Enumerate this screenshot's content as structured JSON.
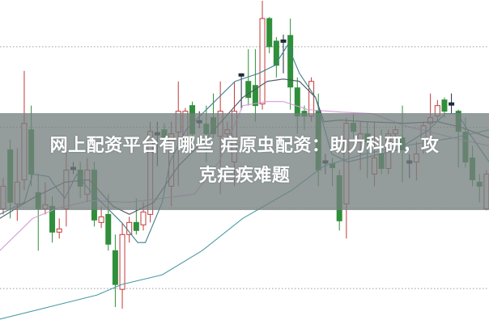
{
  "headline": {
    "line1": "网上配资平台有哪些 疟原虫配资：助力科研，攻",
    "line2": "克疟疾难题"
  },
  "colors": {
    "up": "#c23a3a",
    "down": "#2f8f3a",
    "doji": "#1f2a3a",
    "grid": "#9a9a9a",
    "overlay": "#767f7f",
    "ma_short": "#3f7f8c",
    "ma_mid": "#4a5560",
    "ma_pink": "#d79ad8",
    "ma_long": "#4a9aa6"
  },
  "chart_data": {
    "type": "candlestick",
    "title": "",
    "xlabel": "",
    "ylabel": "",
    "grid": true,
    "grid_style": "dotted horizontal",
    "ylim": [
      0,
      40.1
    ],
    "candles": [
      [
        14.2,
        17.0,
        18.0,
        13.5
      ],
      [
        21.5,
        15.0,
        22.8,
        13.0
      ],
      [
        14.8,
        17.5,
        21.7,
        12.7
      ],
      [
        17.8,
        24.8,
        31.3,
        16.5
      ],
      [
        24.0,
        18.5,
        27.0,
        17.0
      ],
      [
        16.2,
        14.2,
        18.5,
        9.0
      ],
      [
        14.2,
        14.7,
        17.5,
        13.5
      ],
      [
        14.5,
        11.3,
        15.7,
        10.0
      ],
      [
        11.3,
        11.7,
        13.0,
        10.5
      ],
      [
        14.2,
        19.0,
        22.0,
        12.0
      ],
      [
        19.0,
        19.2,
        20.0,
        18.5
      ],
      [
        19.0,
        17.0,
        20.0,
        15.5
      ],
      [
        16.0,
        19.0,
        20.5,
        15.0
      ],
      [
        19.0,
        12.8,
        20.0,
        12.0
      ],
      [
        12.5,
        13.2,
        14.5,
        11.8
      ],
      [
        13.5,
        9.8,
        16.0,
        9.0
      ],
      [
        9.0,
        4.8,
        11.0,
        2.0
      ],
      [
        4.2,
        11.0,
        12.5,
        1.8
      ],
      [
        11.0,
        12.5,
        13.2,
        10.0
      ],
      [
        12.5,
        11.5,
        15.5,
        11.0
      ],
      [
        12.2,
        13.8,
        15.0,
        11.5
      ],
      [
        13.5,
        23.8,
        25.0,
        12.5
      ],
      [
        23.5,
        23.5,
        25.0,
        19.5
      ],
      [
        24.0,
        23.0,
        24.8,
        22.5
      ],
      [
        17.0,
        23.5,
        25.0,
        14.5
      ],
      [
        23.7,
        26.3,
        30.0,
        17.0
      ],
      [
        22.5,
        26.3,
        26.7,
        22.5
      ],
      [
        27.0,
        23.5,
        27.5,
        23.0
      ],
      [
        25.0,
        25.0,
        26.3,
        24.2
      ],
      [
        24.7,
        23.5,
        27.0,
        20.0
      ],
      [
        25.5,
        23.5,
        28.5,
        23.0
      ],
      [
        23.2,
        26.3,
        30.0,
        16.0
      ],
      [
        23.5,
        24.0,
        25.0,
        23.0
      ],
      [
        20.0,
        26.3,
        30.0,
        17.0
      ],
      [
        30.8,
        30.8,
        31.0,
        26.5
      ],
      [
        30.0,
        28.0,
        34.0,
        27.0
      ],
      [
        29.5,
        27.0,
        34.0,
        25.0
      ],
      [
        27.2,
        37.8,
        40.0,
        26.5
      ],
      [
        37.8,
        34.3,
        38.0,
        33.5
      ],
      [
        35.0,
        32.0,
        35.5,
        30.5
      ],
      [
        35.0,
        34.8,
        35.8,
        31.0
      ],
      [
        35.7,
        29.3,
        37.8,
        26.5
      ],
      [
        29.2,
        25.7,
        30.5,
        23.5
      ],
      [
        26.3,
        25.7,
        27.0,
        24.0
      ],
      [
        25.7,
        30.0,
        30.5,
        25.0
      ],
      [
        26.3,
        19.0,
        28.5,
        17.0
      ],
      [
        20.0,
        20.0,
        21.0,
        18.5
      ],
      [
        19.8,
        19.3,
        20.5,
        17.0
      ],
      [
        18.3,
        12.7,
        19.0,
        11.5
      ],
      [
        14.8,
        24.8,
        25.5,
        10.5
      ],
      [
        24.8,
        23.8,
        26.0,
        23.0
      ],
      [
        22.5,
        23.5,
        25.0,
        19.0
      ],
      [
        23.5,
        22.5,
        25.0,
        18.0
      ],
      [
        18.5,
        20.5,
        25.0,
        17.0
      ],
      [
        21.0,
        19.2,
        24.0,
        18.5
      ],
      [
        19.2,
        23.5,
        24.0,
        18.5
      ],
      [
        23.5,
        24.0,
        24.5,
        23.0
      ],
      [
        23.0,
        21.5,
        27.0,
        17.5
      ],
      [
        20.0,
        20.0,
        21.0,
        18.0
      ],
      [
        20.0,
        21.0,
        22.5,
        17.7
      ],
      [
        23.0,
        24.5,
        25.0,
        21.0
      ],
      [
        24.8,
        25.5,
        28.5,
        22.5
      ],
      [
        25.7,
        27.0,
        27.7,
        25.0
      ],
      [
        27.7,
        26.3,
        28.0,
        25.5
      ],
      [
        27.2,
        27.2,
        28.5,
        26.0
      ],
      [
        26.3,
        23.8,
        26.5,
        19.3
      ],
      [
        23.7,
        20.0,
        25.5,
        19.3
      ],
      [
        20.5,
        17.8,
        22.0,
        17.0
      ],
      [
        17.5,
        17.0,
        18.5,
        15.0
      ],
      [
        14.2,
        18.5,
        19.0,
        14.0
      ]
    ],
    "candle_fields": [
      "open",
      "close",
      "high",
      "low"
    ],
    "moving_averages": [
      {
        "color_key": "ma_long",
        "points": [
          [
            -0.5,
            0.5
          ],
          [
            6.5,
            2
          ],
          [
            13.4,
            3.5
          ],
          [
            16.9,
            4.8
          ],
          [
            22.7,
            6
          ],
          [
            28.4,
            9
          ],
          [
            34.2,
            13
          ],
          [
            41.2,
            16.5
          ],
          [
            45.8,
            19.5
          ],
          [
            51.6,
            21
          ],
          [
            57.3,
            22
          ],
          [
            64.3,
            23
          ],
          [
            69.4,
            24
          ]
        ]
      },
      {
        "color_key": "ma_pink",
        "points": [
          [
            -0.5,
            9
          ],
          [
            4.2,
            13
          ],
          [
            7.6,
            14.2
          ],
          [
            12.3,
            15.2
          ],
          [
            18,
            15
          ],
          [
            27.3,
            16
          ],
          [
            30.8,
            20
          ],
          [
            34.2,
            27
          ],
          [
            37.7,
            27.5
          ],
          [
            40,
            27.5
          ],
          [
            43.5,
            26.5
          ],
          [
            48.1,
            26.2
          ],
          [
            52.7,
            26
          ],
          [
            57.3,
            24.5
          ],
          [
            64.3,
            23
          ],
          [
            69.4,
            22
          ]
        ]
      },
      {
        "color_key": "ma_mid",
        "points": [
          [
            -0.5,
            13
          ],
          [
            4.2,
            15.5
          ],
          [
            8.8,
            17.5
          ],
          [
            12.3,
            17.8
          ],
          [
            15.7,
            14.5
          ],
          [
            18,
            13.5
          ],
          [
            21.5,
            15
          ],
          [
            25,
            19.5
          ],
          [
            29.6,
            23.5
          ],
          [
            34.2,
            28
          ],
          [
            37.7,
            30
          ],
          [
            40,
            30.3
          ],
          [
            42.3,
            30
          ],
          [
            44.6,
            28
          ],
          [
            45.8,
            25
          ],
          [
            48.1,
            25.2
          ],
          [
            51.6,
            25
          ],
          [
            57.3,
            24.8
          ],
          [
            62,
            25
          ],
          [
            65.4,
            24.3
          ],
          [
            69.4,
            23
          ]
        ]
      },
      {
        "color_key": "ma_short",
        "points": [
          [
            -0.5,
            13.5
          ],
          [
            3,
            15
          ],
          [
            4.2,
            18.5
          ],
          [
            6.5,
            18.2
          ],
          [
            7.6,
            16.8
          ],
          [
            8.8,
            15.5
          ],
          [
            10.5,
            18.5
          ],
          [
            12.3,
            16.5
          ],
          [
            14.6,
            14.5
          ],
          [
            16.9,
            12.5
          ],
          [
            19.2,
            10
          ],
          [
            20.3,
            10
          ],
          [
            22.7,
            15
          ],
          [
            23.8,
            20
          ],
          [
            26.1,
            24
          ],
          [
            29.6,
            27
          ],
          [
            33.1,
            30
          ],
          [
            36.5,
            31
          ],
          [
            38.8,
            32
          ],
          [
            40.6,
            34.5
          ],
          [
            42.3,
            31
          ],
          [
            44.6,
            28
          ],
          [
            46.9,
            21
          ],
          [
            49.2,
            20
          ],
          [
            51.6,
            20.5
          ],
          [
            56.2,
            21.5
          ],
          [
            60.8,
            24
          ],
          [
            63.1,
            26
          ],
          [
            64.9,
            26
          ],
          [
            66.6,
            23.5
          ],
          [
            69.4,
            20
          ]
        ]
      }
    ]
  }
}
